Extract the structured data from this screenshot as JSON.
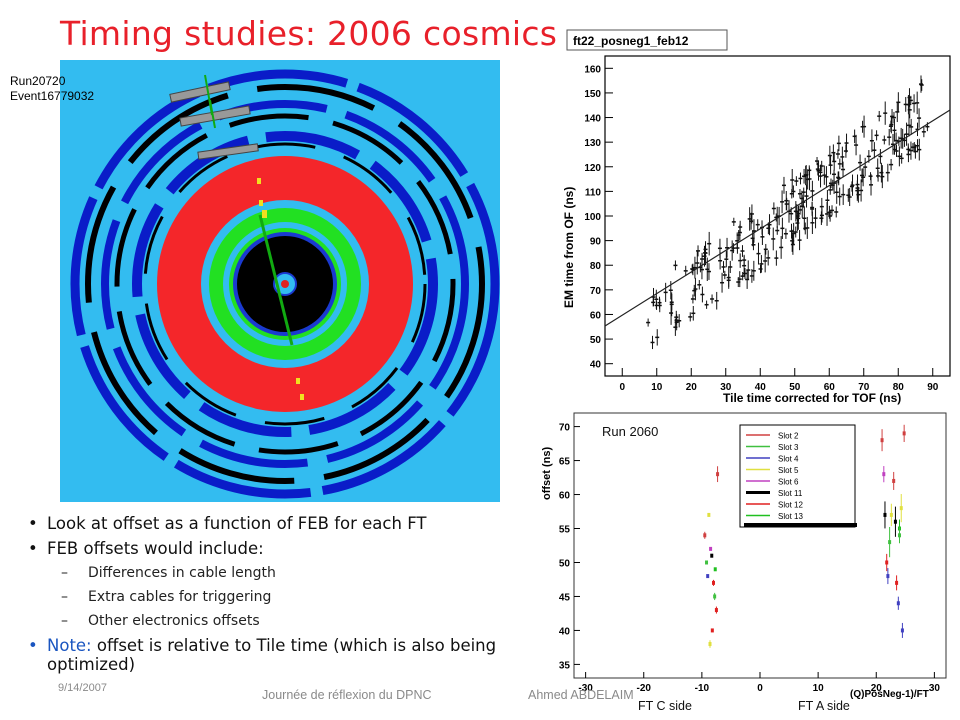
{
  "slide": {
    "title": "Timing studies: 2006 cosmics",
    "run_label": "Run20720",
    "event_label": "Event16779032"
  },
  "plot_top": {
    "title_box": "ft22_posneg1_feb12",
    "ylabel": "EM time from OF (ns)",
    "xlabel": "Tile time corrected for TOF (ns)",
    "y_ticks": [
      "40",
      "50",
      "60",
      "70",
      "80",
      "90",
      "100",
      "110",
      "120",
      "130",
      "140",
      "150",
      "160"
    ],
    "x_ticks": [
      "0",
      "10",
      "20",
      "30",
      "40",
      "50",
      "60",
      "70",
      "80",
      "90"
    ]
  },
  "plot_bottom": {
    "run_text": "Run 2060",
    "ylabel": "offset (ns)",
    "y_ticks": [
      "35",
      "40",
      "45",
      "50",
      "55",
      "60",
      "65",
      "70"
    ],
    "x_ticks": [
      "-30",
      "-20",
      "-10",
      "0",
      "10",
      "20",
      "30"
    ],
    "x_title_fragment": "(Q)PosNeg-1)/FT",
    "legend": [
      {
        "name": "Slot 2",
        "color": "#d04040"
      },
      {
        "name": "Slot 3",
        "color": "#40c040"
      },
      {
        "name": "Slot 4",
        "color": "#4040c0"
      },
      {
        "name": "Slot 5",
        "color": "#e0e040"
      },
      {
        "name": "Slot 6",
        "color": "#c040c0"
      },
      {
        "name": "Slot 11",
        "color": "#000000"
      },
      {
        "name": "Slot 12",
        "color": "#e02020"
      },
      {
        "name": "Slot 13",
        "color": "#20c020"
      }
    ],
    "ft_c_label": "FT C side",
    "ft_a_label": "FT A side"
  },
  "bullets": {
    "b1": "Look at offset as a function of FEB for each FT",
    "b2": "FEB offsets would include:",
    "sub1": "Differences in cable length",
    "sub2": "Extra cables for triggering",
    "sub3": "Other electronics offsets",
    "note_kw": "Note:",
    "note_rest": " offset is relative to Tile time (which is also being optimized)"
  },
  "footer": {
    "date": "9/14/2007",
    "center": "Journée de réflexion du DPNC",
    "author": "Ahmed ABDELAIM"
  },
  "colors": {
    "title": "#e8202a",
    "panel_bg": "#33bcf0",
    "calorimeter": "#f4262a",
    "inner_green": "#22e022",
    "note_blue": "#1a55c0"
  }
}
